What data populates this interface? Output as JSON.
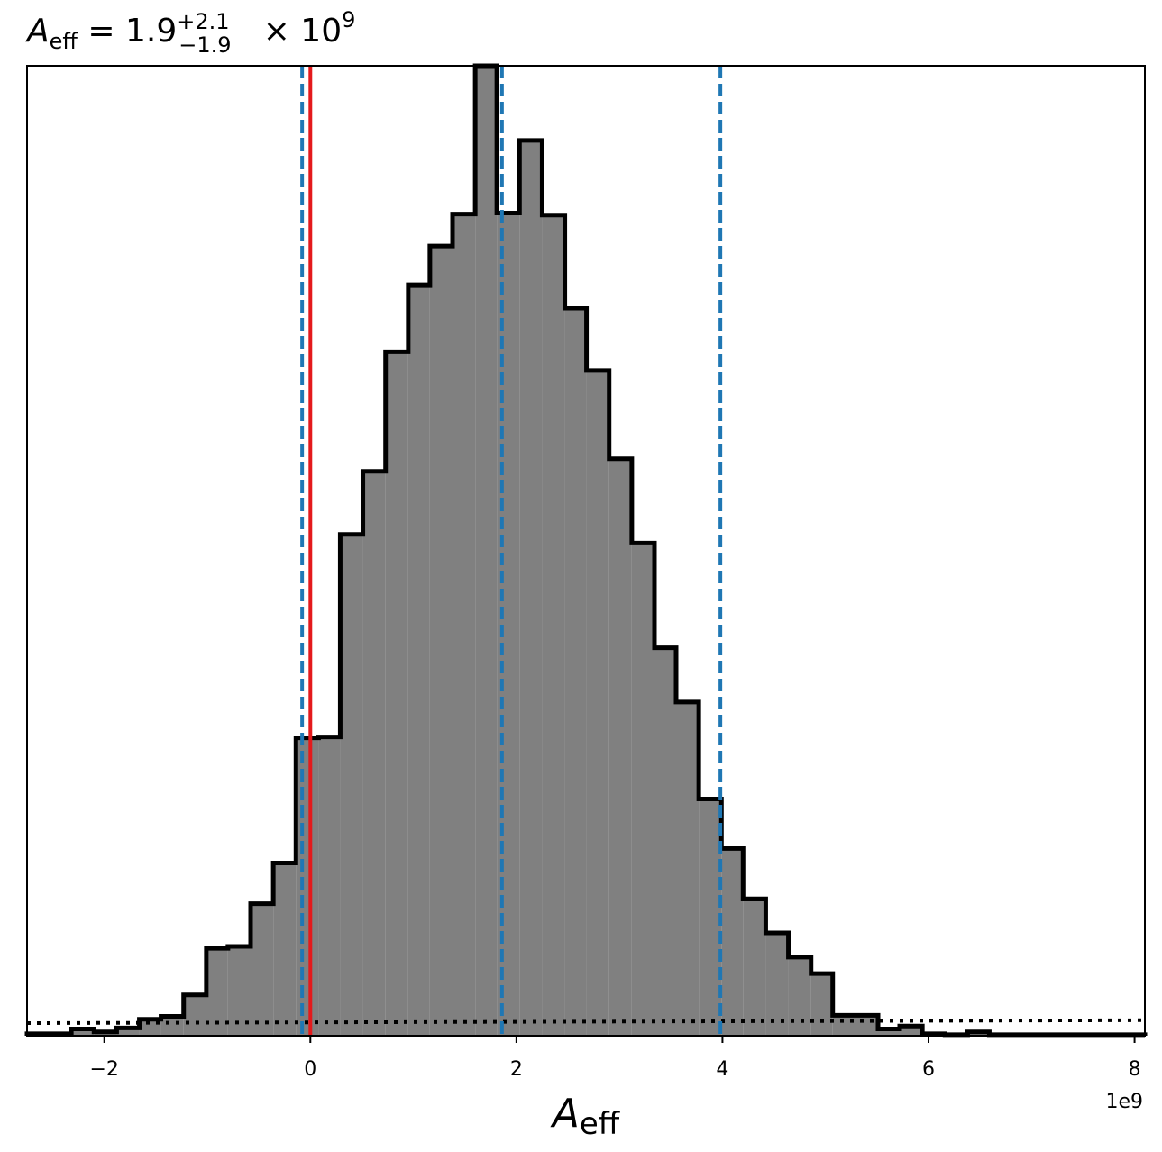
{
  "chart_data": {
    "type": "histogram",
    "title": {
      "symbol": "A",
      "subscript": "eff",
      "equals": "=",
      "value": "1.9",
      "upper": "+2.1",
      "lower": "−1.9",
      "times": "×",
      "base": "10",
      "exponent": "9"
    },
    "xlabel": {
      "symbol": "A",
      "subscript": "eff"
    },
    "offset_text": "1e9",
    "xlim": [
      -2.75,
      8.1
    ],
    "ylim": [
      0,
      1.0
    ],
    "xticks": [
      {
        "value": -2,
        "label": "−2"
      },
      {
        "value": 0,
        "label": "0"
      },
      {
        "value": 2,
        "label": "2"
      },
      {
        "value": 4,
        "label": "4"
      },
      {
        "value": 6,
        "label": "6"
      },
      {
        "value": 8,
        "label": "8"
      }
    ],
    "bins": [
      {
        "x0": -2.75,
        "x1": -2.32,
        "y": 0.002
      },
      {
        "x0": -2.32,
        "x1": -2.1,
        "y": 0.007
      },
      {
        "x0": -2.1,
        "x1": -1.88,
        "y": 0.004
      },
      {
        "x0": -1.88,
        "x1": -1.66,
        "y": 0.008
      },
      {
        "x0": -1.66,
        "x1": -1.45,
        "y": 0.017
      },
      {
        "x0": -1.45,
        "x1": -1.23,
        "y": 0.02
      },
      {
        "x0": -1.23,
        "x1": -1.01,
        "y": 0.042
      },
      {
        "x0": -1.01,
        "x1": -0.8,
        "y": 0.09
      },
      {
        "x0": -0.8,
        "x1": -0.58,
        "y": 0.092
      },
      {
        "x0": -0.58,
        "x1": -0.36,
        "y": 0.136
      },
      {
        "x0": -0.36,
        "x1": -0.14,
        "y": 0.178
      },
      {
        "x0": -0.14,
        "x1": 0.08,
        "y": 0.307
      },
      {
        "x0": 0.08,
        "x1": 0.29,
        "y": 0.308
      },
      {
        "x0": 0.29,
        "x1": 0.51,
        "y": 0.517
      },
      {
        "x0": 0.51,
        "x1": 0.73,
        "y": 0.582
      },
      {
        "x0": 0.73,
        "x1": 0.95,
        "y": 0.705
      },
      {
        "x0": 0.95,
        "x1": 1.16,
        "y": 0.774
      },
      {
        "x0": 1.16,
        "x1": 1.38,
        "y": 0.814
      },
      {
        "x0": 1.38,
        "x1": 1.6,
        "y": 0.847
      },
      {
        "x0": 1.6,
        "x1": 1.81,
        "y": 1.0
      },
      {
        "x0": 1.81,
        "x1": 2.03,
        "y": 0.848
      },
      {
        "x0": 2.03,
        "x1": 2.25,
        "y": 0.923
      },
      {
        "x0": 2.25,
        "x1": 2.47,
        "y": 0.846
      },
      {
        "x0": 2.47,
        "x1": 2.68,
        "y": 0.75
      },
      {
        "x0": 2.68,
        "x1": 2.9,
        "y": 0.686
      },
      {
        "x0": 2.9,
        "x1": 3.12,
        "y": 0.595
      },
      {
        "x0": 3.12,
        "x1": 3.34,
        "y": 0.508
      },
      {
        "x0": 3.34,
        "x1": 3.55,
        "y": 0.4
      },
      {
        "x0": 3.55,
        "x1": 3.77,
        "y": 0.344
      },
      {
        "x0": 3.77,
        "x1": 3.99,
        "y": 0.244
      },
      {
        "x0": 3.99,
        "x1": 4.2,
        "y": 0.193
      },
      {
        "x0": 4.2,
        "x1": 4.42,
        "y": 0.141
      },
      {
        "x0": 4.42,
        "x1": 4.64,
        "y": 0.106
      },
      {
        "x0": 4.64,
        "x1": 4.86,
        "y": 0.081
      },
      {
        "x0": 4.86,
        "x1": 5.07,
        "y": 0.064
      },
      {
        "x0": 5.07,
        "x1": 5.51,
        "y": 0.021
      },
      {
        "x0": 5.51,
        "x1": 5.72,
        "y": 0.007
      },
      {
        "x0": 5.72,
        "x1": 5.94,
        "y": 0.01
      },
      {
        "x0": 5.94,
        "x1": 6.16,
        "y": 0.002
      },
      {
        "x0": 6.16,
        "x1": 6.38,
        "y": 0.001
      },
      {
        "x0": 6.38,
        "x1": 6.59,
        "y": 0.004
      },
      {
        "x0": 6.59,
        "x1": 8.1,
        "y": 0.001
      }
    ],
    "vlines": [
      {
        "x": -0.08,
        "style": "dashed",
        "color": "#1f77b4"
      },
      {
        "x": 1.86,
        "style": "dashed",
        "color": "#1f77b4"
      },
      {
        "x": 3.98,
        "style": "dashed",
        "color": "#1f77b4"
      },
      {
        "x": 0.0,
        "style": "solid",
        "color": "#e41a1c"
      }
    ],
    "prior_line": {
      "x0": -2.75,
      "x1": 8.1,
      "y0": 0.013,
      "y1": 0.016,
      "style": "dotted",
      "color": "#000000"
    },
    "fill_color": "#808080",
    "edge_color": "#000000",
    "grid": false
  }
}
